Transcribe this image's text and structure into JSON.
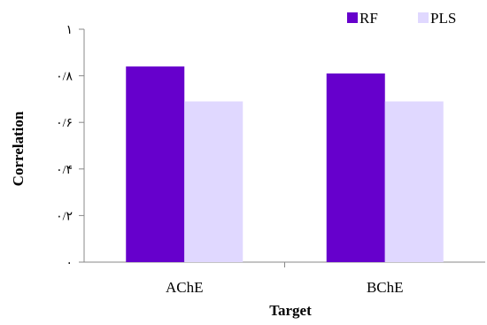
{
  "chart_data": {
    "type": "bar",
    "title": "",
    "xlabel": "Target",
    "ylabel": "Correlation",
    "categories": [
      "AChE",
      "BChE"
    ],
    "series": [
      {
        "name": "RF",
        "color": "#6600CC",
        "values": [
          0.84,
          0.81
        ]
      },
      {
        "name": "PLS",
        "color": "#E0D8FF",
        "values": [
          0.69,
          0.69
        ]
      }
    ],
    "ylim": [
      0,
      1
    ],
    "yticks": [
      {
        "value": 0,
        "label": "۰"
      },
      {
        "value": 0.2,
        "label": "۰/۲"
      },
      {
        "value": 0.4,
        "label": "۰/۴"
      },
      {
        "value": 0.6,
        "label": "۰/۶"
      },
      {
        "value": 0.8,
        "label": "۰/۸"
      },
      {
        "value": 1,
        "label": "۱"
      }
    ],
    "grid": false,
    "legend_position": "top-right"
  }
}
